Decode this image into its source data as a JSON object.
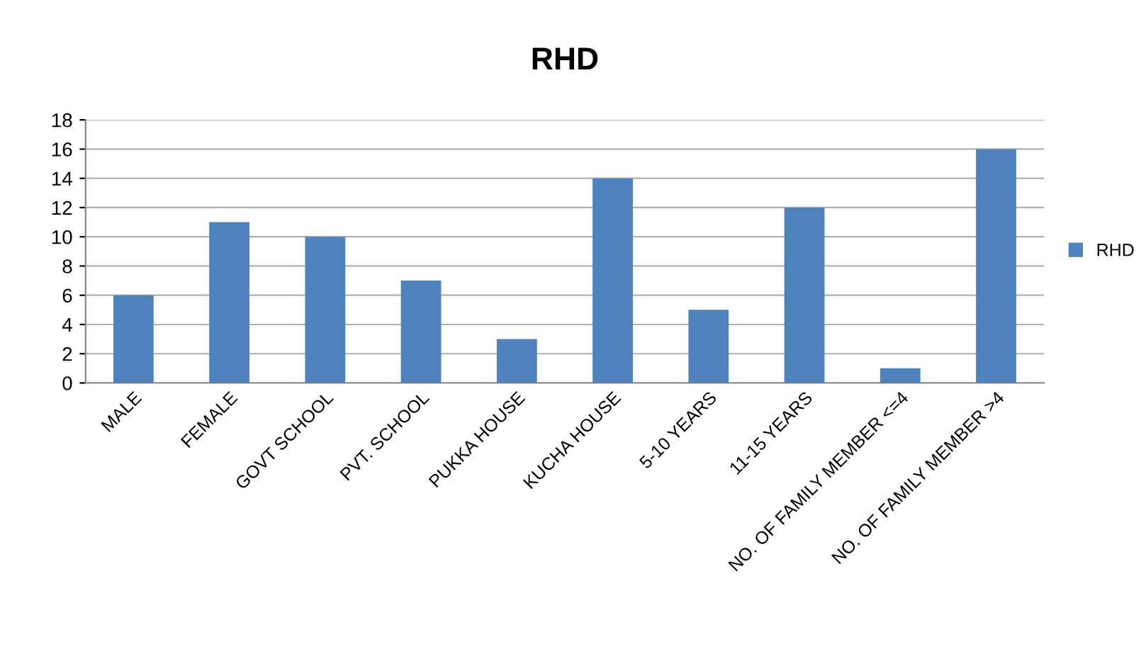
{
  "chart_data": {
    "type": "bar",
    "title": "RHD",
    "categories": [
      "MALE",
      "FEMALE",
      "GOVT SCHOOL",
      "PVT. SCHOOL",
      "PUKKA HOUSE",
      "KUCHA HOUSE",
      "5-10 YEARS",
      "11-15 YEARS",
      "NO. OF FAMILY MEMBER <=4",
      "NO. OF FAMILY MEMBER >4"
    ],
    "series": [
      {
        "name": "RHD",
        "color": "#4f81bd",
        "values": [
          6,
          11,
          10,
          7,
          3,
          14,
          5,
          12,
          1,
          16
        ]
      }
    ],
    "ylim": [
      0,
      18
    ],
    "yticks": [
      0,
      2,
      4,
      6,
      8,
      10,
      12,
      14,
      16,
      18
    ],
    "grid": "y",
    "legend": "right"
  }
}
